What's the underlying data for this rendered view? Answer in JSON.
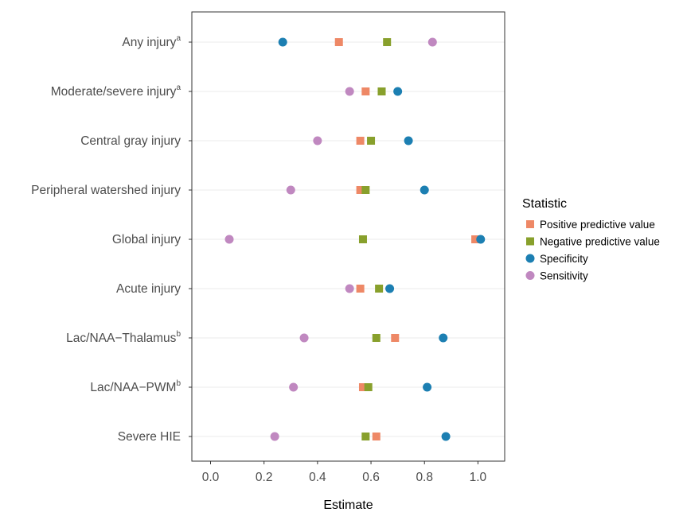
{
  "chart_data": {
    "type": "scatter",
    "xlabel": "Estimate",
    "xlim": [
      -0.07,
      1.1
    ],
    "x_ticks": [
      "0.0",
      "0.2",
      "0.4",
      "0.6",
      "0.8",
      "1.0"
    ],
    "categories": [
      {
        "label": "Any injury",
        "sup": "a"
      },
      {
        "label": "Moderate/severe injury",
        "sup": "a"
      },
      {
        "label": "Central gray injury",
        "sup": ""
      },
      {
        "label": "Peripheral watershed injury",
        "sup": ""
      },
      {
        "label": "Global injury",
        "sup": ""
      },
      {
        "label": "Acute injury",
        "sup": ""
      },
      {
        "label": "Lac/NAA−Thalamus",
        "sup": "b"
      },
      {
        "label": "Lac/NAA−PWM",
        "sup": "b"
      },
      {
        "label": "Severe HIE",
        "sup": ""
      }
    ],
    "grid": true,
    "legend": {
      "title": "Statistic",
      "position": "right"
    },
    "series": [
      {
        "name": "Positive predictive value",
        "color": "#EE8866",
        "marker": "square",
        "values": [
          0.48,
          0.58,
          0.56,
          0.56,
          0.99,
          0.56,
          0.69,
          0.57,
          0.62
        ]
      },
      {
        "name": "Negative predictive value",
        "color": "#88A02C",
        "marker": "square",
        "values": [
          0.66,
          0.64,
          0.6,
          0.58,
          0.57,
          0.63,
          0.62,
          0.59,
          0.58
        ]
      },
      {
        "name": "Specificity",
        "color": "#1C7FB2",
        "marker": "circle",
        "values": [
          0.27,
          0.7,
          0.74,
          0.8,
          1.01,
          0.67,
          0.87,
          0.81,
          0.88
        ]
      },
      {
        "name": "Sensitivity",
        "color": "#C088C0",
        "marker": "circle",
        "values": [
          0.83,
          0.52,
          0.4,
          0.3,
          0.07,
          0.52,
          0.35,
          0.31,
          0.24
        ]
      }
    ]
  }
}
